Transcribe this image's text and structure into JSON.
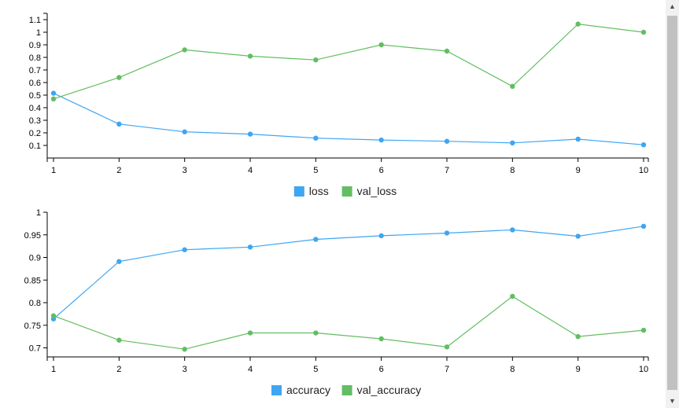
{
  "chart_data": [
    {
      "type": "line",
      "x": [
        1,
        2,
        3,
        4,
        5,
        6,
        7,
        8,
        9,
        10
      ],
      "series": [
        {
          "name": "loss",
          "color": "#3ea6f3",
          "values": [
            0.515,
            0.27,
            0.208,
            0.19,
            0.158,
            0.143,
            0.133,
            0.12,
            0.15,
            0.105
          ]
        },
        {
          "name": "val_loss",
          "color": "#63bd63",
          "values": [
            0.47,
            0.64,
            0.86,
            0.81,
            0.78,
            0.9,
            0.85,
            0.57,
            1.065,
            1.0
          ]
        }
      ],
      "yticks": [
        "0.1",
        "0.2",
        "0.3",
        "0.4",
        "0.5",
        "0.6",
        "0.7",
        "0.8",
        "0.9",
        "1",
        "1.1"
      ],
      "xticks": [
        "1",
        "2",
        "3",
        "4",
        "5",
        "6",
        "7",
        "8",
        "9",
        "10"
      ],
      "ylim": [
        0.0,
        1.15
      ],
      "xlim": [
        1,
        10
      ],
      "legend_position": "bottom-center",
      "grid": false
    },
    {
      "type": "line",
      "x": [
        1,
        2,
        3,
        4,
        5,
        6,
        7,
        8,
        9,
        10
      ],
      "series": [
        {
          "name": "accuracy",
          "color": "#3ea6f3",
          "values": [
            0.764,
            0.891,
            0.917,
            0.923,
            0.94,
            0.948,
            0.954,
            0.961,
            0.947,
            0.969
          ]
        },
        {
          "name": "val_accuracy",
          "color": "#63bd63",
          "values": [
            0.771,
            0.717,
            0.697,
            0.733,
            0.733,
            0.72,
            0.702,
            0.814,
            0.725,
            0.739
          ]
        }
      ],
      "yticks": [
        "0.7",
        "0.75",
        "0.8",
        "0.85",
        "0.9",
        "0.95",
        "1"
      ],
      "xticks": [
        "1",
        "2",
        "3",
        "4",
        "5",
        "6",
        "7",
        "8",
        "9",
        "10"
      ],
      "ylim": [
        0.68,
        1.0
      ],
      "xlim": [
        1,
        10
      ],
      "legend_position": "bottom-center",
      "grid": false
    }
  ],
  "scrollbar": {
    "up_icon": "triangle-up-icon",
    "down_icon": "triangle-down-icon"
  }
}
